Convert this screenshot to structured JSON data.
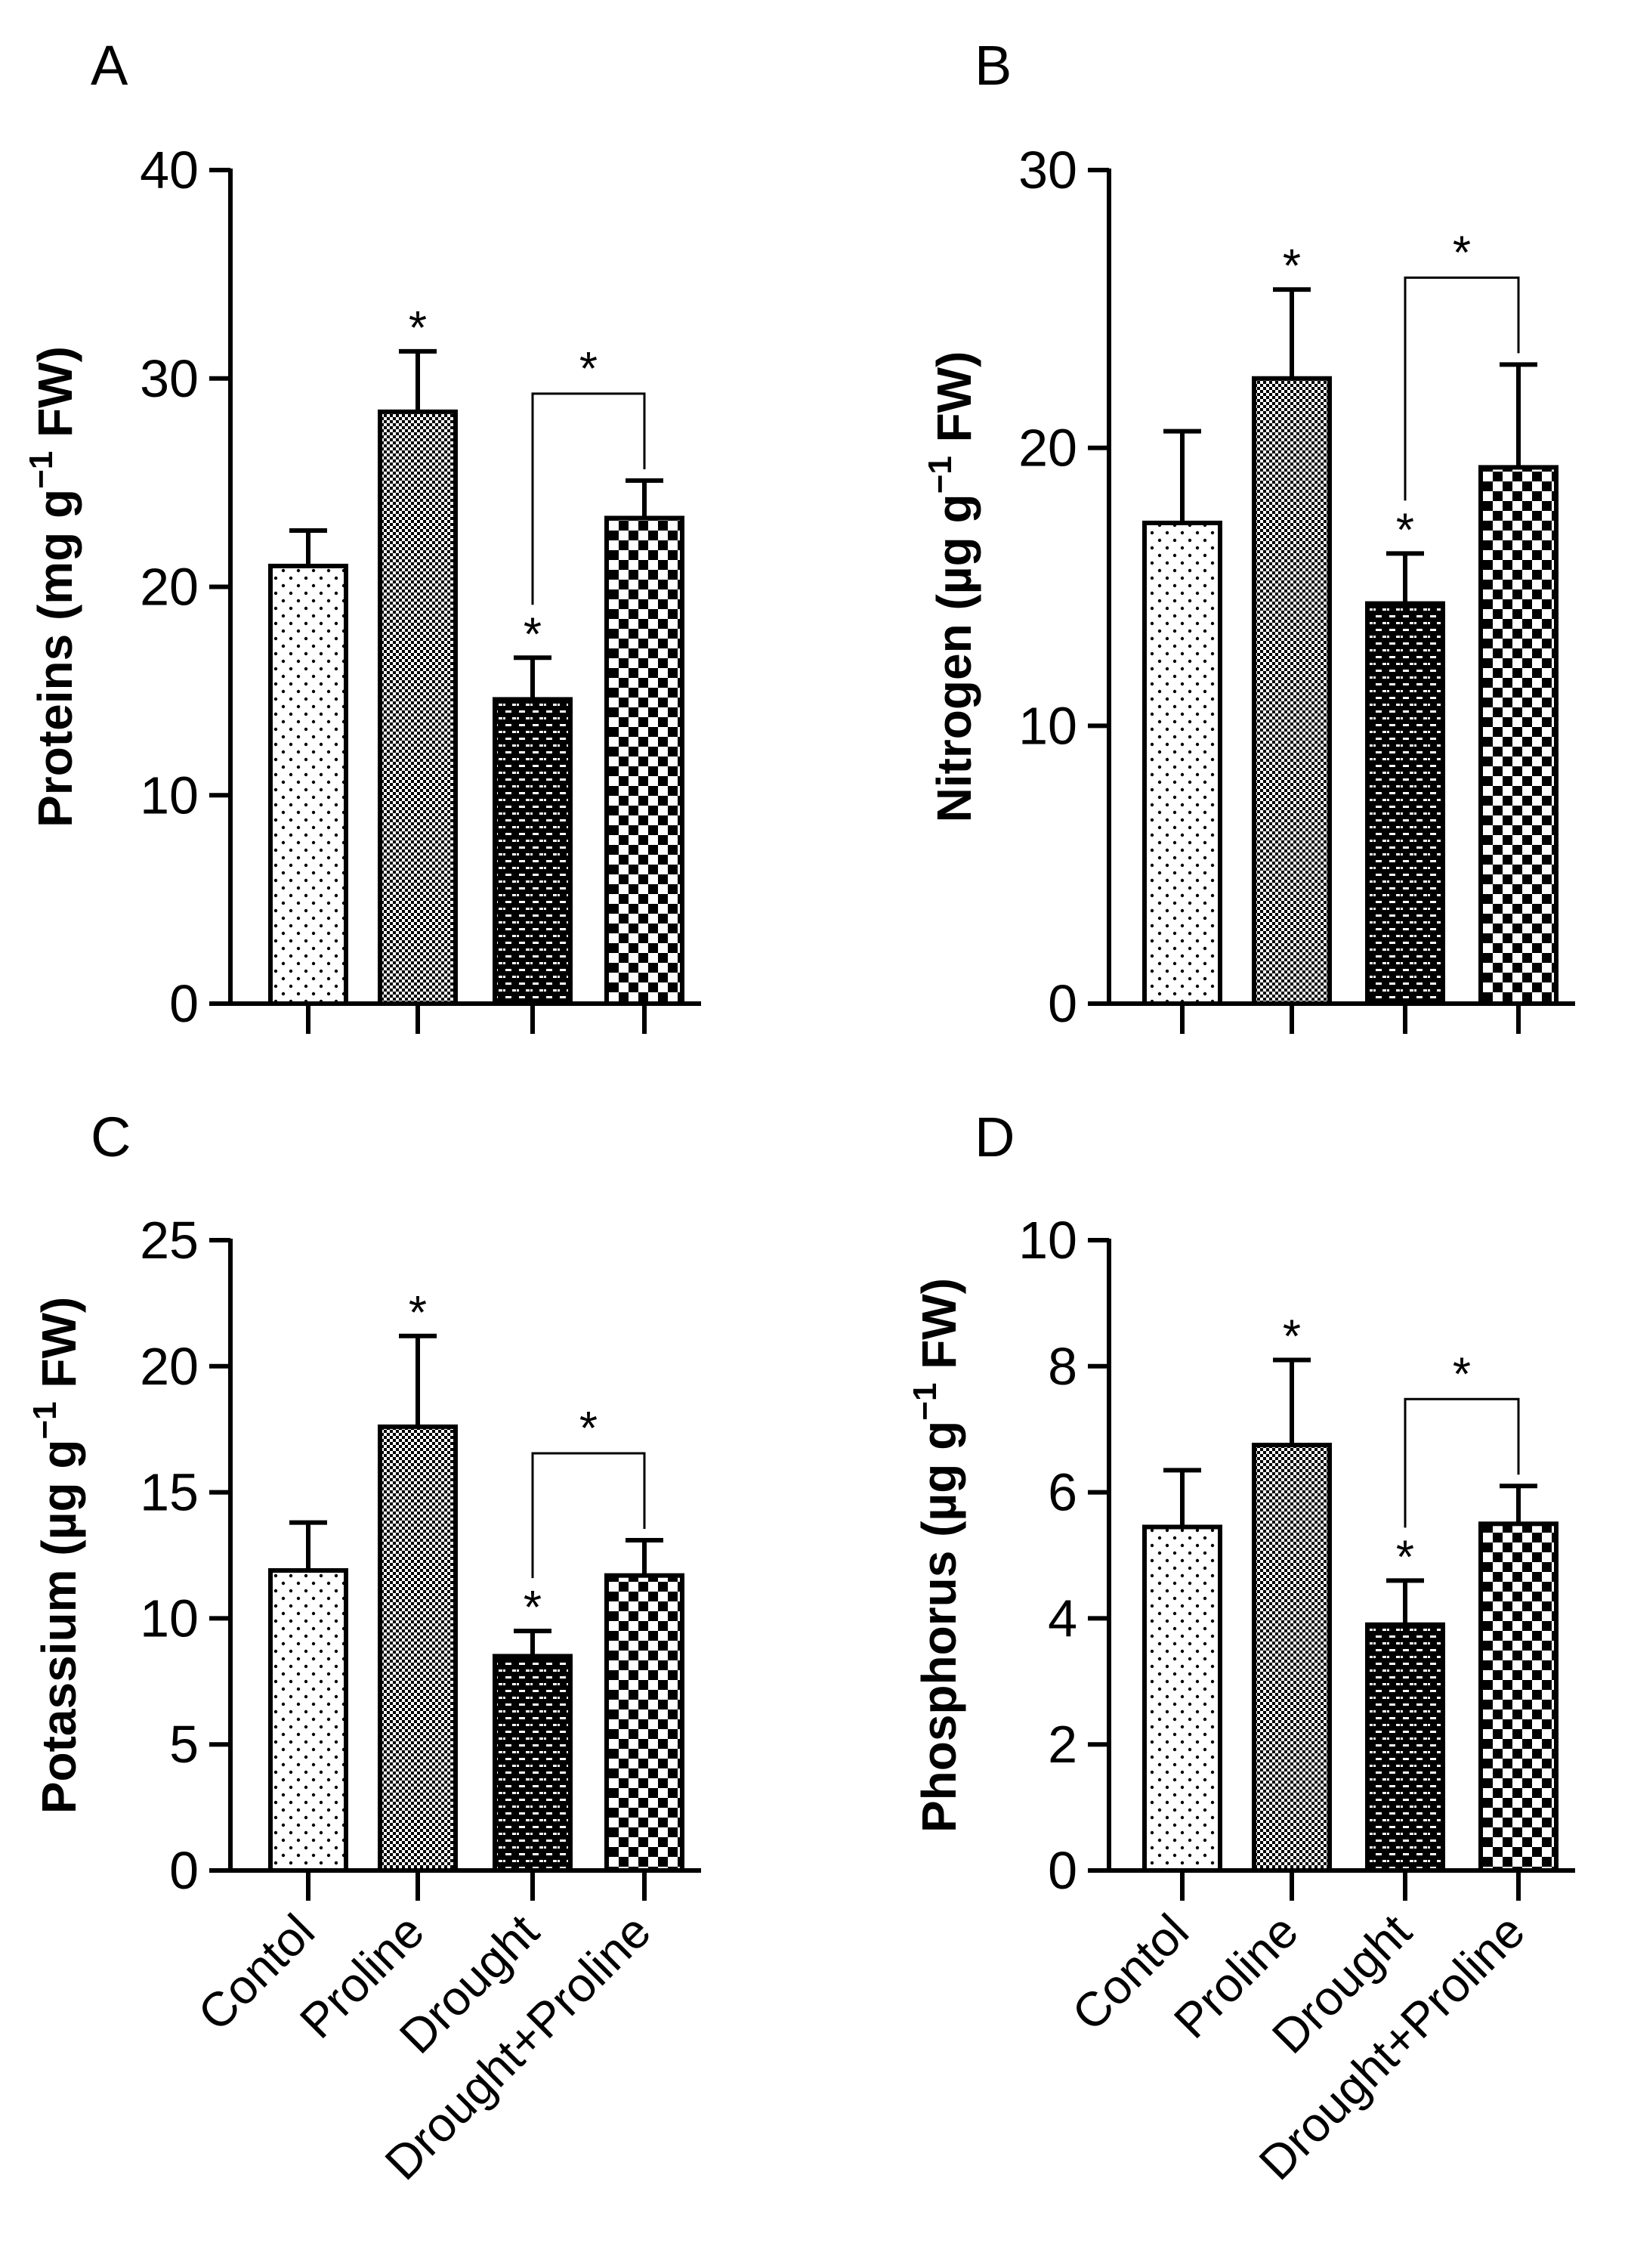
{
  "categories": [
    "Contol",
    "Proline",
    "Drought",
    "Drought+Proline"
  ],
  "chart_data": [
    {
      "type": "bar",
      "panel": "A",
      "ylabel": "Proteins (mg g",
      "ylabel_sup": "−1",
      "ylabel_tail": " FW)",
      "ylim": [
        0,
        40
      ],
      "yticks": [
        0,
        10,
        20,
        30,
        40
      ],
      "values": [
        21.0,
        28.4,
        14.6,
        23.3
      ],
      "errors": [
        1.7,
        2.9,
        2.0,
        1.8
      ],
      "stars": [
        "",
        "*",
        "*",
        ""
      ],
      "bracket": {
        "from": 2,
        "to": 3,
        "label": "*"
      }
    },
    {
      "type": "bar",
      "panel": "B",
      "ylabel": "Nitrogen (µg g",
      "ylabel_sup": "−1",
      "ylabel_tail": " FW)",
      "ylim": [
        0,
        30
      ],
      "yticks": [
        0,
        10,
        20,
        30
      ],
      "values": [
        17.3,
        22.5,
        14.4,
        19.3
      ],
      "errors": [
        3.3,
        3.2,
        1.8,
        3.7
      ],
      "stars": [
        "",
        "*",
        "*",
        ""
      ],
      "bracket": {
        "from": 2,
        "to": 3,
        "label": "*"
      }
    },
    {
      "type": "bar",
      "panel": "C",
      "ylabel": "Potassium (µg g",
      "ylabel_sup": "−1",
      "ylabel_tail": " FW)",
      "ylim": [
        0,
        25
      ],
      "yticks": [
        0,
        5,
        10,
        15,
        20,
        25
      ],
      "values": [
        11.9,
        17.6,
        8.5,
        11.7
      ],
      "errors": [
        1.9,
        3.6,
        1.0,
        1.4
      ],
      "stars": [
        "",
        "*",
        "*",
        ""
      ],
      "bracket": {
        "from": 2,
        "to": 3,
        "label": "*"
      }
    },
    {
      "type": "bar",
      "panel": "D",
      "ylabel": "Phosphorus (µg g",
      "ylabel_sup": "−1",
      "ylabel_tail": " FW)",
      "ylim": [
        0,
        10
      ],
      "yticks": [
        0,
        2,
        4,
        6,
        8,
        10
      ],
      "values": [
        5.45,
        6.75,
        3.9,
        5.5
      ],
      "errors": [
        0.9,
        1.35,
        0.7,
        0.6
      ],
      "stars": [
        "",
        "*",
        "*",
        ""
      ],
      "bracket": {
        "from": 2,
        "to": 3,
        "label": "*"
      }
    }
  ]
}
